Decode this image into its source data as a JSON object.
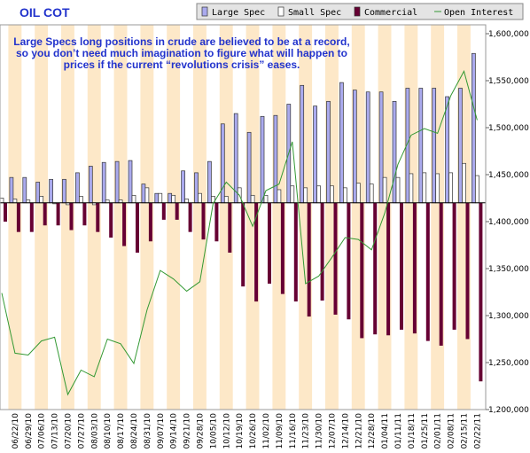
{
  "chart_data": {
    "type": "bar",
    "title": "OIL COT",
    "annotation": [
      "Large Specs long positions in crude are believed to be at a record,",
      "so you don’t need much imagination to figure what will happen to",
      "prices if the current “revolutions crisis” eases."
    ],
    "categories": [
      null,
      "06/22/10",
      "06/29/10",
      "07/06/10",
      "07/13/10",
      "07/20/10",
      "07/27/10",
      "08/03/10",
      "08/10/10",
      "08/17/10",
      "08/24/10",
      "08/31/10",
      "09/07/10",
      "09/14/10",
      "09/21/10",
      "09/28/10",
      "10/05/10",
      "10/12/10",
      "10/19/10",
      "10/26/10",
      "11/02/10",
      "11/09/10",
      "11/16/10",
      "11/23/10",
      "11/30/10",
      "12/07/10",
      "12/14/10",
      "12/21/10",
      "12/28/10",
      "01/04/11",
      "01/11/11",
      "01/18/11",
      "01/25/11",
      "02/01/11",
      "02/08/11",
      "02/15/11",
      "02/22/11"
    ],
    "series": [
      {
        "name": "Large Spec",
        "color": "#aaaaee",
        "values": [
          22000,
          27000,
          27000,
          22000,
          25000,
          25000,
          32000,
          39000,
          43000,
          44000,
          45000,
          20000,
          10000,
          10000,
          34000,
          32000,
          44000,
          84000,
          95000,
          75000,
          92000,
          93000,
          105000,
          125000,
          103000,
          108000,
          128000,
          120000,
          118000,
          118000,
          108000,
          122000,
          122000,
          122000,
          113000,
          122000,
          159000
        ]
      },
      {
        "name": "Small Spec",
        "color": "#ffffff",
        "values": [
          5000,
          4000,
          3000,
          7000,
          -1000,
          -2000,
          7000,
          -2000,
          3000,
          3000,
          8000,
          16000,
          10000,
          8000,
          4000,
          10000,
          7000,
          7000,
          16000,
          8000,
          8000,
          14000,
          18000,
          16000,
          18000,
          18000,
          16000,
          21000,
          20000,
          27000,
          27000,
          31000,
          32000,
          31000,
          32000,
          42000,
          29000
        ]
      },
      {
        "name": "Commercial",
        "color": "#660033",
        "values": [
          -20000,
          -31000,
          -31000,
          -24000,
          -24000,
          -29000,
          -24000,
          -31000,
          -37000,
          -46000,
          -53000,
          -41000,
          -18000,
          -18000,
          -31000,
          -39000,
          -41000,
          -53000,
          -89000,
          -105000,
          -86000,
          -97000,
          -105000,
          -121000,
          -104000,
          -119000,
          -124000,
          -144000,
          -140000,
          -141000,
          -135000,
          -139000,
          -147000,
          -152000,
          -135000,
          -145000,
          -190000
        ]
      },
      {
        "name": "Open Interest",
        "color": "#339933",
        "type": "line",
        "axis": "y2",
        "values": [
          1324000,
          1260000,
          1258000,
          1273000,
          1277000,
          1216000,
          1242000,
          1235000,
          1275000,
          1270000,
          1249000,
          1306000,
          1348000,
          1339000,
          1326000,
          1336000,
          1419000,
          1442000,
          1428000,
          1395000,
          1433000,
          1440000,
          1485000,
          1334000,
          1342000,
          1362000,
          1383000,
          1381000,
          1370000,
          1409000,
          1461000,
          1492000,
          1499000,
          1494000,
          1534000,
          1560000,
          1508000
        ]
      }
    ],
    "ylim": [
      -220000,
      180000
    ],
    "y2lim": [
      1200000,
      1600000
    ],
    "y2ticks": [
      {
        "value": 1200000,
        "label": "1,200,000"
      },
      {
        "value": 1250000,
        "label": "1,250,000"
      },
      {
        "value": 1300000,
        "label": "1,300,000"
      },
      {
        "value": 1350000,
        "label": "1,350,000"
      },
      {
        "value": 1400000,
        "label": "1,400,000"
      },
      {
        "value": 1450000,
        "label": "1,450,000"
      },
      {
        "value": 1500000,
        "label": "1,500,000"
      },
      {
        "value": 1550000,
        "label": "1,550,000"
      },
      {
        "value": 1600000,
        "label": "1,600,000"
      }
    ]
  }
}
